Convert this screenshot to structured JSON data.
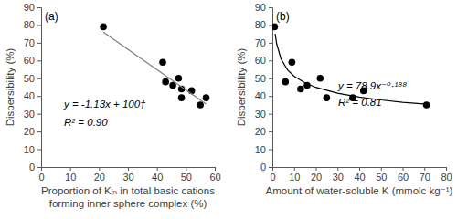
{
  "chart_data": [
    {
      "type": "scatter",
      "title": "(a)",
      "xlabel": [
        "Proportion of Kᵢₙ in total basic cations",
        "forming inner sphere complex (%)"
      ],
      "ylabel": "Dispersibility (%)",
      "xlim": [
        0,
        60
      ],
      "xticks": [
        0,
        10,
        20,
        30,
        40,
        50,
        60
      ],
      "ylim": [
        0,
        90
      ],
      "yticks": [
        0,
        10,
        20,
        30,
        40,
        50,
        60,
        70,
        80,
        90
      ],
      "annotations": [
        "y = -1.13x + 100†",
        "R² = 0.90"
      ],
      "series": [
        {
          "type": "scatter",
          "marker": "circle",
          "color": "#000000",
          "x": [
            21.5,
            42,
            43,
            45.5,
            47.5,
            48.5,
            48.5,
            52,
            55,
            57
          ],
          "values": [
            79,
            59,
            48,
            46,
            50,
            44,
            39,
            43,
            35,
            39
          ]
        },
        {
          "type": "line",
          "line_style": "solid",
          "color": "#808080",
          "x": [
            21.5,
            57
          ],
          "values": [
            76,
            35.5
          ]
        }
      ]
    },
    {
      "type": "scatter",
      "title": "(b)",
      "xlabel": [
        "Amount of water-soluble K (mmolc kg⁻¹)"
      ],
      "ylabel": "Dispersibility (%)",
      "xlim": [
        0,
        80
      ],
      "xticks": [
        0,
        10,
        20,
        30,
        40,
        50,
        60,
        70,
        80
      ],
      "ylim": [
        0,
        90
      ],
      "yticks": [
        0,
        10,
        20,
        30,
        40,
        50,
        60,
        70,
        80,
        90
      ],
      "annotations": [
        "y = 78.9x⁻⁰·¹⁸⁸",
        "R² = 0.81"
      ],
      "series": [
        {
          "type": "scatter",
          "marker": "circle",
          "color": "#000000",
          "x": [
            1,
            6,
            9,
            13,
            16,
            22,
            25,
            37,
            42,
            71
          ],
          "values": [
            79,
            48,
            59,
            44,
            46,
            50,
            39,
            39,
            43,
            35
          ]
        },
        {
          "type": "line",
          "line_style": "solid",
          "color": "#000000",
          "x": [
            1.3,
            2,
            4,
            7,
            10,
            15,
            20,
            30,
            40,
            50,
            60,
            71
          ],
          "values": [
            75,
            69.3,
            60.8,
            54.7,
            51.2,
            47.4,
            44.9,
            41.6,
            39.4,
            37.8,
            36.5,
            35.4
          ]
        }
      ]
    }
  ]
}
